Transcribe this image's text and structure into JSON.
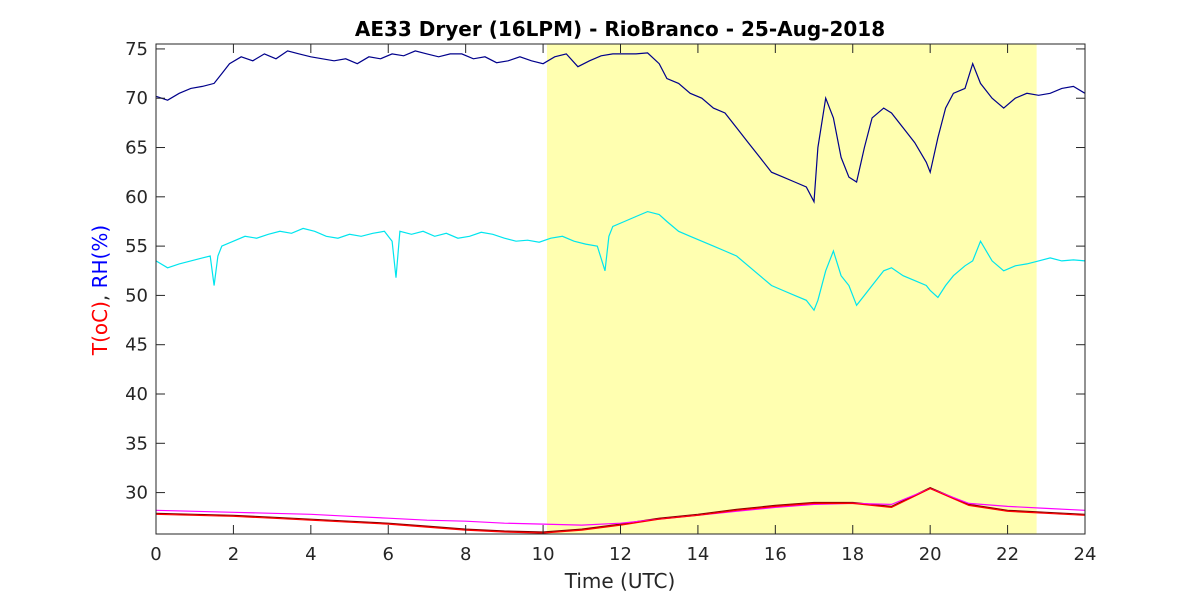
{
  "chart_data": {
    "type": "line",
    "title": "AE33 Dryer (16LPM)  - RioBranco - 25-Aug-2018",
    "xlabel": "Time (UTC)",
    "ylabel_parts": [
      {
        "text": "T(oC)",
        "color": "#ff0000"
      },
      {
        "text": ", ",
        "color": "#262626"
      },
      {
        "text": "RH(%)",
        "color": "#0000ff"
      }
    ],
    "xlim": [
      0,
      24
    ],
    "ylim": [
      25.8,
      75.5
    ],
    "xticks": [
      0,
      2,
      4,
      6,
      8,
      10,
      12,
      14,
      16,
      18,
      20,
      22,
      24
    ],
    "yticks": [
      30,
      35,
      40,
      45,
      50,
      55,
      60,
      65,
      70,
      75
    ],
    "highlight": {
      "x_start": 10.1,
      "x_end": 22.75,
      "color": "#ffffb0"
    },
    "grid": false,
    "series": [
      {
        "color": "#00008b",
        "x": [
          0,
          0.3,
          0.6,
          0.9,
          1.2,
          1.5,
          1.7,
          1.9,
          2.2,
          2.5,
          2.8,
          3.1,
          3.4,
          3.7,
          4,
          4.3,
          4.6,
          4.9,
          5.2,
          5.5,
          5.8,
          6.1,
          6.4,
          6.7,
          7,
          7.3,
          7.6,
          7.9,
          8.2,
          8.5,
          8.8,
          9.1,
          9.4,
          9.7,
          10,
          10.3,
          10.6,
          10.9,
          11.2,
          11.5,
          11.8,
          12.1,
          12.4,
          12.7,
          13,
          13.2,
          13.5,
          13.8,
          14.1,
          14.4,
          14.7,
          15,
          15.3,
          15.6,
          15.9,
          16.2,
          16.5,
          16.8,
          17,
          17.1,
          17.3,
          17.5,
          17.7,
          17.9,
          18.1,
          18.3,
          18.5,
          18.8,
          19,
          19.3,
          19.6,
          19.9,
          20,
          20.2,
          20.4,
          20.6,
          20.9,
          21.1,
          21.3,
          21.6,
          21.9,
          22.2,
          22.5,
          22.8,
          23.1,
          23.4,
          23.7,
          24
        ],
        "values": [
          70.2,
          69.8,
          70.5,
          71,
          71.2,
          71.5,
          72.5,
          73.5,
          74.2,
          73.8,
          74.5,
          74,
          74.8,
          74.5,
          74.2,
          74,
          73.8,
          74,
          73.5,
          74.2,
          74,
          74.5,
          74.3,
          74.8,
          74.5,
          74.2,
          74.5,
          74.5,
          74,
          74.2,
          73.6,
          73.8,
          74.2,
          73.8,
          73.5,
          74.2,
          74.5,
          73.2,
          73.8,
          74.3,
          74.5,
          74.5,
          74.5,
          74.6,
          73.5,
          72,
          71.5,
          70.5,
          70,
          69,
          68.5,
          67,
          65.5,
          64,
          62.5,
          62,
          61.5,
          61,
          59.5,
          65,
          70,
          68,
          64,
          62,
          61.5,
          65,
          68,
          69,
          68.5,
          67,
          65.5,
          63.5,
          62.5,
          66,
          69,
          70.5,
          71,
          73.5,
          71.5,
          70,
          69,
          70,
          70.5,
          70.3,
          70.5,
          71,
          71.2,
          70.5
        ]
      },
      {
        "color": "#00e5ee",
        "x": [
          0,
          0.3,
          0.6,
          0.9,
          1.2,
          1.4,
          1.5,
          1.6,
          1.7,
          2,
          2.3,
          2.6,
          2.9,
          3.2,
          3.5,
          3.8,
          4.1,
          4.4,
          4.7,
          5,
          5.3,
          5.6,
          5.9,
          6.1,
          6.2,
          6.3,
          6.6,
          6.9,
          7.2,
          7.5,
          7.8,
          8.1,
          8.4,
          8.7,
          9,
          9.3,
          9.6,
          9.9,
          10.2,
          10.5,
          10.8,
          11.1,
          11.4,
          11.6,
          11.7,
          11.8,
          12.1,
          12.4,
          12.7,
          13,
          13.2,
          13.5,
          13.8,
          14.1,
          14.4,
          14.7,
          15,
          15.3,
          15.6,
          15.9,
          16.2,
          16.5,
          16.8,
          17,
          17.1,
          17.3,
          17.5,
          17.7,
          17.9,
          18.1,
          18.3,
          18.5,
          18.8,
          19,
          19.3,
          19.6,
          19.9,
          20,
          20.2,
          20.4,
          20.6,
          20.9,
          21.1,
          21.3,
          21.6,
          21.9,
          22.2,
          22.5,
          22.8,
          23.1,
          23.4,
          23.7,
          24
        ],
        "values": [
          53.5,
          52.8,
          53.2,
          53.5,
          53.8,
          54,
          51,
          54,
          55,
          55.5,
          56,
          55.8,
          56.2,
          56.5,
          56.3,
          56.8,
          56.5,
          56,
          55.8,
          56.2,
          56,
          56.3,
          56.5,
          55.5,
          51.8,
          56.5,
          56.2,
          56.5,
          56,
          56.3,
          55.8,
          56,
          56.4,
          56.2,
          55.8,
          55.5,
          55.6,
          55.4,
          55.8,
          56,
          55.5,
          55.2,
          55,
          52.5,
          56,
          57,
          57.5,
          58,
          58.5,
          58.2,
          57.5,
          56.5,
          56,
          55.5,
          55,
          54.5,
          54,
          53,
          52,
          51,
          50.5,
          50,
          49.5,
          48.5,
          49.5,
          52.5,
          54.5,
          52,
          51,
          49,
          50,
          51,
          52.5,
          52.8,
          52,
          51.5,
          51,
          50.5,
          49.8,
          51,
          52,
          53,
          53.5,
          55.5,
          53.5,
          52.5,
          53,
          53.2,
          53.5,
          53.8,
          53.5,
          53.6,
          53.5
        ]
      },
      {
        "color": "#8b0000",
        "x": [
          0,
          1,
          2,
          3,
          4,
          5,
          6,
          7,
          8,
          9,
          10,
          11,
          12,
          13,
          14,
          15,
          16,
          17,
          18,
          19,
          20,
          21,
          22,
          23,
          24
        ],
        "values": [
          27.9,
          27.8,
          27.7,
          27.5,
          27.3,
          27.1,
          26.9,
          26.6,
          26.3,
          26.1,
          26,
          26.3,
          26.8,
          27.4,
          27.8,
          28.3,
          28.7,
          29,
          29,
          28.6,
          30.5,
          28.8,
          28.2,
          28,
          27.8
        ]
      },
      {
        "color": "#ff00ff",
        "x": [
          0,
          1,
          2,
          3,
          4,
          5,
          6,
          7,
          8,
          9,
          10,
          11,
          12,
          13,
          14,
          15,
          16,
          17,
          18,
          19,
          20,
          21,
          22,
          23,
          24
        ],
        "values": [
          28.2,
          28.1,
          28,
          27.9,
          27.8,
          27.6,
          27.4,
          27.2,
          27.1,
          26.9,
          26.8,
          26.7,
          26.9,
          27.3,
          27.7,
          28.1,
          28.5,
          28.8,
          28.9,
          28.8,
          30.4,
          28.9,
          28.6,
          28.4,
          28.2
        ]
      },
      {
        "color": "#ff0000",
        "x": [
          0,
          1,
          2,
          3,
          4,
          5,
          6,
          7,
          8,
          9,
          10,
          11,
          12,
          13,
          14,
          15,
          16,
          17,
          18,
          19,
          20,
          21,
          22,
          23,
          24
        ],
        "values": [
          27.8,
          27.7,
          27.6,
          27.4,
          27.2,
          27,
          26.8,
          26.5,
          26.2,
          26,
          25.9,
          26.2,
          26.7,
          27.3,
          27.7,
          28.2,
          28.6,
          28.9,
          28.9,
          28.5,
          30.4,
          28.7,
          28.1,
          27.9,
          27.7
        ]
      }
    ]
  }
}
